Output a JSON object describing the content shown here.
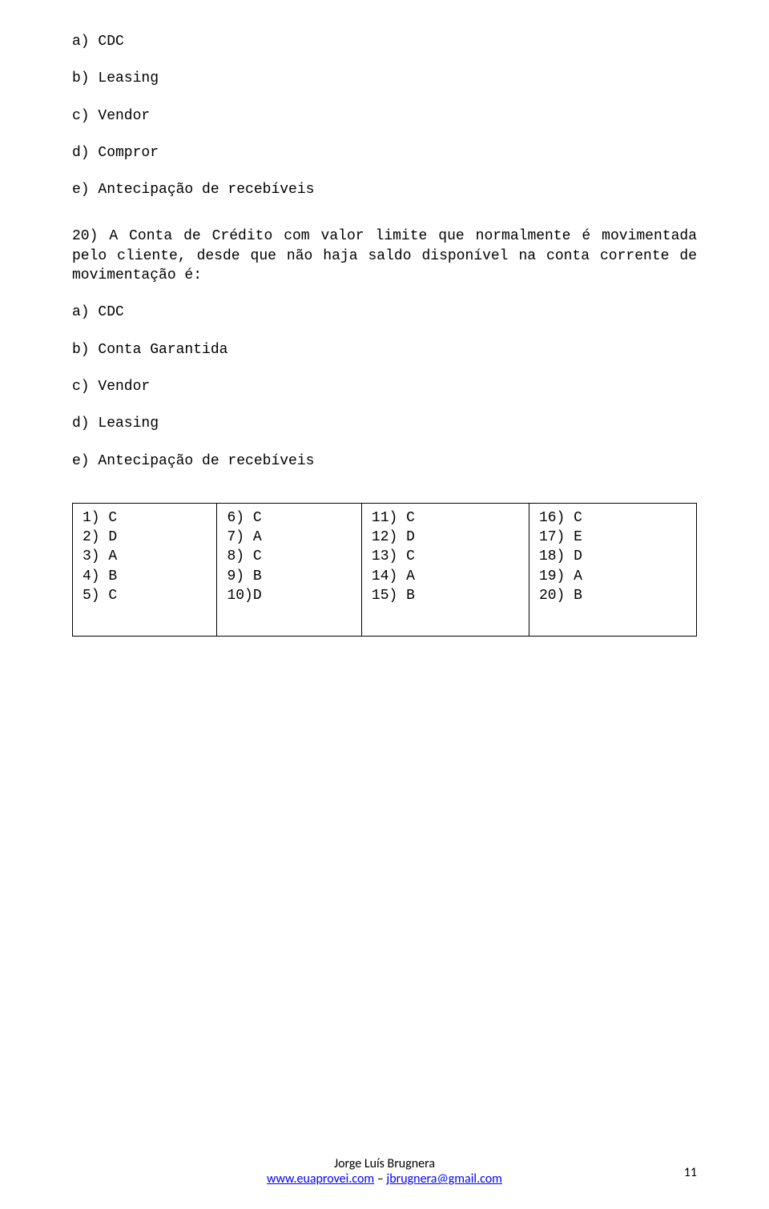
{
  "options_top": [
    "a) CDC",
    "b) Leasing",
    "c) Vendor",
    "d) Compror",
    "e) Antecipação de recebíveis"
  ],
  "question_20": "20) A Conta de Crédito com valor limite que normalmente é movimentada pelo cliente, desde que não haja saldo disponível na conta corrente de movimentação é:",
  "options_q20": [
    "a) CDC",
    "b) Conta Garantida",
    "c) Vendor",
    "d) Leasing",
    "e) Antecipação de recebíveis"
  ],
  "answers": {
    "cols": [
      [
        "1) C",
        "2) D",
        "3) A",
        "4) B",
        "5) C"
      ],
      [
        "6) C",
        "7) A",
        "8) C",
        "9) B",
        "10)D"
      ],
      [
        "11) C",
        "12) D",
        "13) C",
        "14) A",
        "15) B"
      ],
      [
        "16) C",
        "17) E",
        "18) D",
        "19) A",
        "20) B"
      ]
    ]
  },
  "footer": {
    "author": "Jorge Luís Brugnera",
    "site": "www.euaprovei.com",
    "email": "jbrugnera@gmail.com",
    "page": "11"
  }
}
